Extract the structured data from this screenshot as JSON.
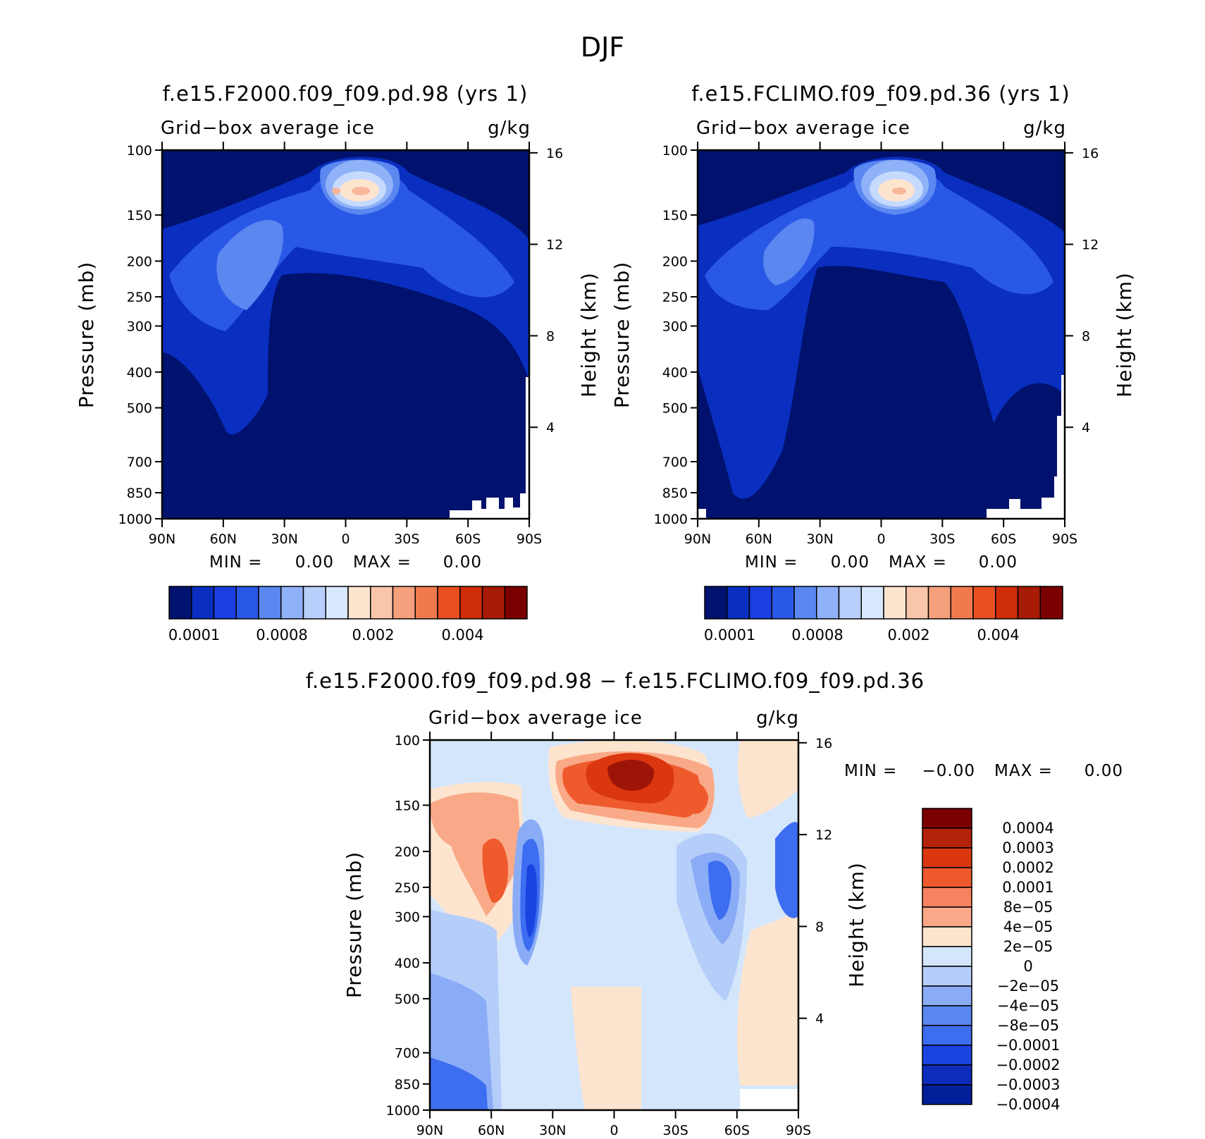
{
  "title": "DJF",
  "colors": {
    "panel1": [
      "#00126e",
      "#0a2fc0",
      "#2a58e6",
      "#5a87f0",
      "#8fb1f7"
    ],
    "panel2": [
      "#00126e",
      "#0a2fc0",
      "#2a58e6",
      "#5a87f0",
      "#8fb1f7"
    ],
    "core": [
      "#c6dafd",
      "#fde4cf",
      "#f7b699",
      "#f0825f"
    ],
    "diff": {
      "red3": "#d9381a",
      "red4": "#9e1408",
      "blue1": "#d4e6fb",
      "blue2": "#b5cdf9",
      "blue3": "#8aacf6",
      "blue4": "#3d6df0",
      "blue5": "#1b43df",
      "peach": "#fde4cf"
    }
  },
  "panels": [
    {
      "subtitle": "f.e15.F2000.f09_f09.pd.98 (yrs  1)",
      "variable": "Grid−box average ice",
      "units": "g/kg",
      "ylabel": "Pressure (mb)",
      "y2label": "Height (km)",
      "min_label": "MIN =",
      "min_value": "0.00",
      "max_label": "MAX =",
      "max_value": "0.00"
    },
    {
      "subtitle": "f.e15.FCLIMO.f09_f09.pd.36 (yrs  1)",
      "variable": "Grid−box average ice",
      "units": "g/kg",
      "ylabel": "Pressure (mb)",
      "y2label": "Height (km)",
      "min_label": "MIN =",
      "min_value": "0.00",
      "max_label": "MAX =",
      "max_value": "0.00"
    },
    {
      "subtitle": "f.e15.F2000.f09_f09.pd.98 − f.e15.FCLIMO.f09_f09.pd.36",
      "variable": "Grid−box average ice",
      "units": "g/kg",
      "ylabel": "Pressure (mb)",
      "y2label": "Height (km)",
      "min_label": "MIN =",
      "min_value": "−0.00",
      "max_label": "MAX =",
      "max_value": "0.00"
    }
  ],
  "chart_data": {
    "type": "heatmap",
    "x_ticks": [
      "90N",
      "60N",
      "30N",
      "0",
      "30S",
      "60S",
      "90S"
    ],
    "x_range": [
      90,
      -90
    ],
    "pressure_ticks": [
      "100",
      "150",
      "200",
      "250",
      "300",
      "400",
      "500",
      "700",
      "850",
      "1000"
    ],
    "pressure_values": [
      100,
      150,
      200,
      250,
      300,
      400,
      500,
      700,
      850,
      1000
    ],
    "height_ticks": [
      "16",
      "12",
      "8",
      "4"
    ],
    "height_values": [
      16,
      12,
      8,
      4
    ],
    "colorbar_main": {
      "colors": [
        "#00126e",
        "#0a2fc0",
        "#1a3ee0",
        "#2a58e6",
        "#5a87f0",
        "#8fb1f7",
        "#b8cffb",
        "#d9e8fd",
        "#fde4cf",
        "#f9c6ab",
        "#f5a07c",
        "#f0794e",
        "#e8501f",
        "#cf2d0a",
        "#a81b07",
        "#7a0000"
      ],
      "labels": [
        "0.0001",
        "0.0008",
        "0.002",
        "0.004"
      ]
    },
    "colorbar_diff": {
      "colors": [
        "#7a0000",
        "#b3210a",
        "#da370f",
        "#ee5a2c",
        "#f7825f",
        "#f9a987",
        "#fde4cf",
        "#d4e6fb",
        "#b5cdf9",
        "#8aacf6",
        "#5a87f0",
        "#3d6df0",
        "#1b43df",
        "#0d2cbc",
        "#001f99"
      ],
      "labels": [
        "0.0004",
        "0.0003",
        "0.0002",
        "0.0001",
        "8e−05",
        "4e−05",
        "2e−05",
        "0",
        "−2e−05",
        "−4e−05",
        "−8e−05",
        "−0.0001",
        "−0.0002",
        "−0.0003",
        "−0.0004"
      ]
    }
  }
}
